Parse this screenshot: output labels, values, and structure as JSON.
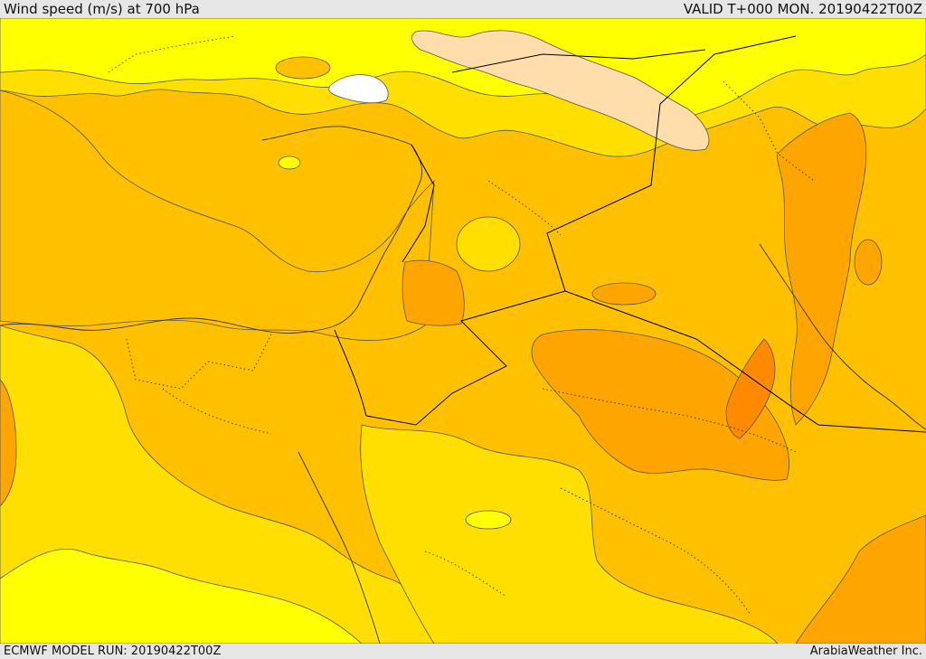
{
  "header": {
    "title": "Wind speed (m/s) at 700 hPa",
    "valid": "VALID T+000 MON. 20190422T00Z"
  },
  "footer": {
    "model_run": "ECMWF MODEL RUN: 20190422T00Z",
    "credit": "ArabiaWeather Inc."
  },
  "colors": {
    "band_lowest": "#ffffff",
    "band_pale": "#ffdeab",
    "band_1": "#ffff00",
    "band_2": "#ffdf00",
    "band_3": "#ffc000",
    "band_4": "#ffa500",
    "band_5": "#ff8a00",
    "band_6": "#ff7000",
    "contour": "#555555",
    "border": "#000000"
  }
}
